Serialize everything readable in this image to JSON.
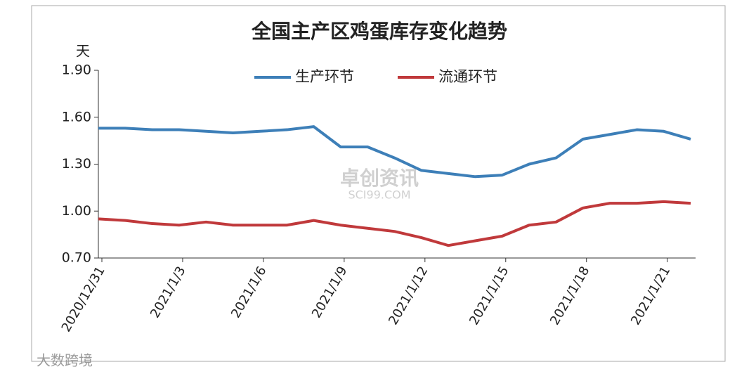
{
  "chart_data": {
    "type": "line",
    "title": "全国主产区鸡蛋库存变化趋势",
    "y_label": "天",
    "categories": [
      "2020/12/31",
      null,
      null,
      "2021/1/3",
      null,
      null,
      "2021/1/6",
      null,
      null,
      "2021/1/9",
      null,
      null,
      "2021/1/12",
      null,
      null,
      "2021/1/15",
      null,
      null,
      "2021/1/18",
      null,
      null,
      "2021/1/21",
      null
    ],
    "series": [
      {
        "name": "生产环节",
        "color": "#3d7fb8",
        "values": [
          1.53,
          1.53,
          1.52,
          1.52,
          1.51,
          1.5,
          1.51,
          1.52,
          1.54,
          1.41,
          1.41,
          1.34,
          1.26,
          1.24,
          1.22,
          1.23,
          1.3,
          1.34,
          1.46,
          1.49,
          1.52,
          1.51,
          1.46
        ]
      },
      {
        "name": "流通环节",
        "color": "#c0393b",
        "values": [
          0.95,
          0.94,
          0.92,
          0.91,
          0.93,
          0.91,
          0.91,
          0.91,
          0.94,
          0.91,
          0.89,
          0.87,
          0.83,
          0.78,
          0.81,
          0.84,
          0.91,
          0.93,
          1.02,
          1.05,
          1.05,
          1.06,
          1.05
        ]
      }
    ],
    "ylim": [
      0.7,
      1.9
    ],
    "yticks": [
      {
        "value": 0.7,
        "label": "0.70"
      },
      {
        "value": 1.0,
        "label": "1.00"
      },
      {
        "value": 1.3,
        "label": "1.30"
      },
      {
        "value": 1.6,
        "label": "1.60"
      },
      {
        "value": 1.9,
        "label": "1.90"
      }
    ],
    "legend": "top",
    "annotations": [
      "卓创资讯",
      "SCI99.COM",
      "大数跨境"
    ]
  }
}
